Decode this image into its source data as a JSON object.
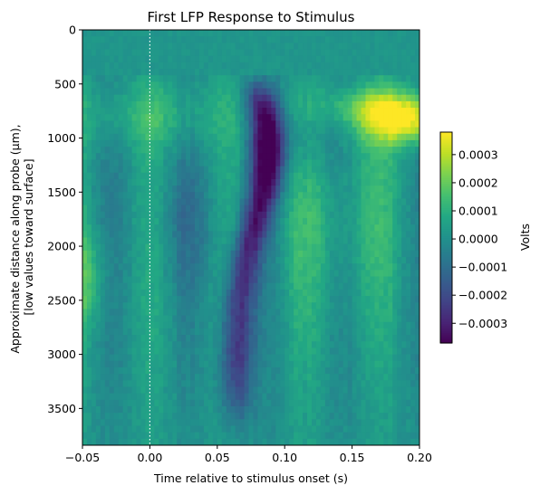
{
  "chart_data": {
    "type": "heatmap",
    "title": "First LFP Response to Stimulus",
    "xlabel": "Time relative to stimulus onset (s)",
    "ylabel_lines": [
      "Approximate distance along probe (µm),",
      "[low values toward surface]"
    ],
    "xlim": [
      -0.05,
      0.2
    ],
    "ylim": [
      3840,
      0
    ],
    "x_ticks": [
      -0.05,
      0,
      0.05,
      0.1,
      0.15,
      0.2
    ],
    "x_tick_labels": [
      "−0.05",
      "0.00",
      "0.05",
      "0.10",
      "0.15",
      "0.20"
    ],
    "y_ticks": [
      0,
      500,
      1000,
      1500,
      2000,
      2500,
      3000,
      3500
    ],
    "y_tick_labels": [
      "0",
      "500",
      "1000",
      "1500",
      "2000",
      "2500",
      "3000",
      "3500"
    ],
    "stimulus_onset_line": {
      "x": 0,
      "color": "#ffffff",
      "style": "dotted"
    },
    "colormap": "viridis",
    "colorbar": {
      "label": "Volts",
      "vmin": -0.00037,
      "vmax": 0.00038,
      "ticks": [
        -0.0003,
        -0.0002,
        -0.0001,
        0,
        0.0001,
        0.0002,
        0.0003
      ],
      "tick_labels": [
        "−0.0003",
        "−0.0002",
        "−0.0001",
        "0.0000",
        "0.0001",
        "0.0002",
        "0.0003"
      ]
    },
    "grid": false
  }
}
